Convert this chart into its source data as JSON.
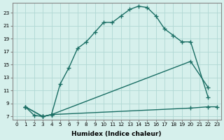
{
  "xlabel": "Humidex (Indice chaleur)",
  "bg_color": "#d6f0ec",
  "line_color": "#1a6e64",
  "grid_color": "#b0d8d4",
  "xlim": [
    -0.5,
    23.5
  ],
  "ylim": [
    6.5,
    24.5
  ],
  "xticks": [
    0,
    1,
    2,
    3,
    4,
    5,
    6,
    7,
    8,
    9,
    10,
    11,
    12,
    13,
    14,
    15,
    16,
    17,
    18,
    19,
    20,
    21,
    22,
    23
  ],
  "yticks": [
    7,
    9,
    11,
    13,
    15,
    17,
    19,
    21,
    23
  ],
  "line1_x": [
    1,
    2,
    3,
    4,
    5,
    6,
    7,
    8,
    9,
    10,
    11,
    12,
    13,
    14,
    15,
    16,
    17,
    18,
    19,
    20,
    22
  ],
  "line1_y": [
    8.5,
    7.2,
    7.0,
    7.3,
    12.0,
    14.5,
    17.5,
    18.5,
    20.0,
    21.5,
    21.5,
    22.5,
    23.5,
    24.0,
    23.8,
    22.5,
    20.5,
    19.5,
    18.5,
    18.5,
    10.0
  ],
  "line2_x": [
    1,
    3,
    4,
    20,
    22
  ],
  "line2_y": [
    8.5,
    7.0,
    7.3,
    15.5,
    11.5
  ],
  "line3_x": [
    1,
    3,
    4,
    20,
    22,
    23
  ],
  "line3_y": [
    8.5,
    7.0,
    7.3,
    8.3,
    8.5,
    8.5
  ],
  "marker": "+",
  "markersize": 4,
  "linewidth": 1.0,
  "tick_fontsize": 5.2,
  "xlabel_fontsize": 6.5
}
